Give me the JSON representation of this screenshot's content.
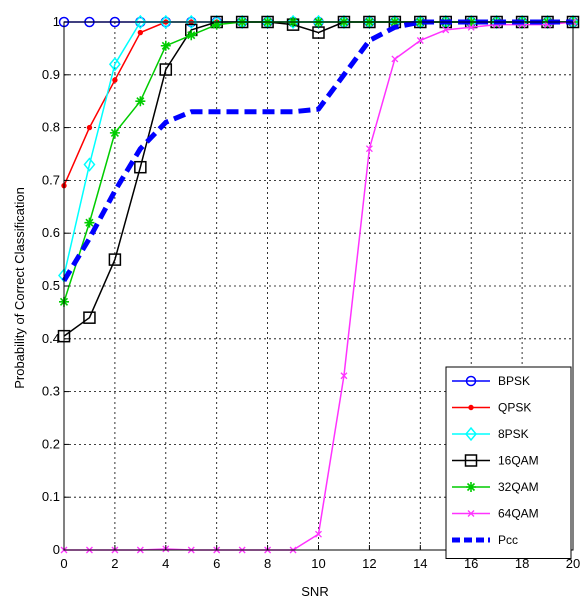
{
  "chart_data": {
    "type": "line",
    "title": "",
    "xlabel": "SNR",
    "ylabel": "Probability of Correct Classification",
    "xlim": [
      0,
      20
    ],
    "ylim": [
      0,
      1
    ],
    "xticks": [
      0,
      2,
      4,
      6,
      8,
      10,
      12,
      14,
      16,
      18,
      20
    ],
    "xtick_labels": [
      "0",
      "2",
      "4",
      "6",
      "8",
      "10",
      "12",
      "14",
      "16",
      "18",
      "20"
    ],
    "yticks": [
      0,
      0.1,
      0.2,
      0.3,
      0.4,
      0.5,
      0.6,
      0.7,
      0.8,
      0.9,
      1
    ],
    "ytick_labels": [
      "0",
      "0.1",
      "0.2",
      "0.3",
      "0.4",
      "0.5",
      "0.6",
      "0.7",
      "0.8",
      "0.9",
      "1"
    ],
    "grid": true,
    "legend_position": "bottom-right",
    "x": [
      0,
      1,
      2,
      3,
      4,
      5,
      6,
      7,
      8,
      9,
      10,
      11,
      12,
      13,
      14,
      15,
      16,
      17,
      18,
      19,
      20
    ],
    "series": [
      {
        "name": "BPSK",
        "color": "#0000ff",
        "marker": "circle",
        "dashed": false,
        "values": [
          1,
          1,
          1,
          1,
          1,
          1,
          1,
          1,
          1,
          1,
          1,
          1,
          1,
          1,
          1,
          1,
          1,
          1,
          1,
          1,
          1
        ]
      },
      {
        "name": "QPSK",
        "color": "#ff0000",
        "marker": "dot",
        "dashed": false,
        "values": [
          0.69,
          0.8,
          0.89,
          0.98,
          1,
          1,
          1,
          1,
          1,
          1,
          1,
          1,
          1,
          1,
          1,
          1,
          1,
          1,
          1,
          1,
          1
        ]
      },
      {
        "name": "8PSK",
        "color": "#00ffff",
        "marker": "diamond",
        "dashed": false,
        "values": [
          0.52,
          0.73,
          0.92,
          1,
          1,
          1,
          1,
          1,
          1,
          1,
          1,
          1,
          1,
          1,
          1,
          1,
          1,
          1,
          1,
          1,
          1
        ]
      },
      {
        "name": "16QAM",
        "color": "#000000",
        "marker": "square",
        "dashed": false,
        "values": [
          0.405,
          0.44,
          0.55,
          0.725,
          0.91,
          0.985,
          1,
          1,
          1,
          0.995,
          0.98,
          1,
          1,
          1,
          1,
          1,
          1,
          1,
          1,
          1,
          1
        ]
      },
      {
        "name": "32QAM",
        "color": "#00cc00",
        "marker": "star",
        "dashed": false,
        "values": [
          0.47,
          0.62,
          0.79,
          0.85,
          0.955,
          0.975,
          0.995,
          1,
          1,
          1,
          1,
          1,
          1,
          1,
          1,
          1,
          1,
          1,
          1,
          1,
          1
        ]
      },
      {
        "name": "64QAM",
        "color": "#ff33ff",
        "marker": "x",
        "dashed": false,
        "values": [
          0,
          0,
          0,
          0,
          0.002,
          0,
          0,
          0,
          0,
          0,
          0.03,
          0.33,
          0.76,
          0.93,
          0.965,
          0.985,
          0.99,
          0.995,
          0.995,
          0.995,
          1
        ]
      },
      {
        "name": "Pcc",
        "color": "#0000ff",
        "marker": "arrow",
        "dashed": true,
        "values": [
          0.51,
          0.59,
          0.68,
          0.76,
          0.81,
          0.83,
          0.83,
          0.83,
          0.83,
          0.83,
          0.835,
          0.9,
          0.965,
          0.99,
          1,
          1,
          1,
          1,
          1,
          1,
          1
        ]
      }
    ]
  }
}
